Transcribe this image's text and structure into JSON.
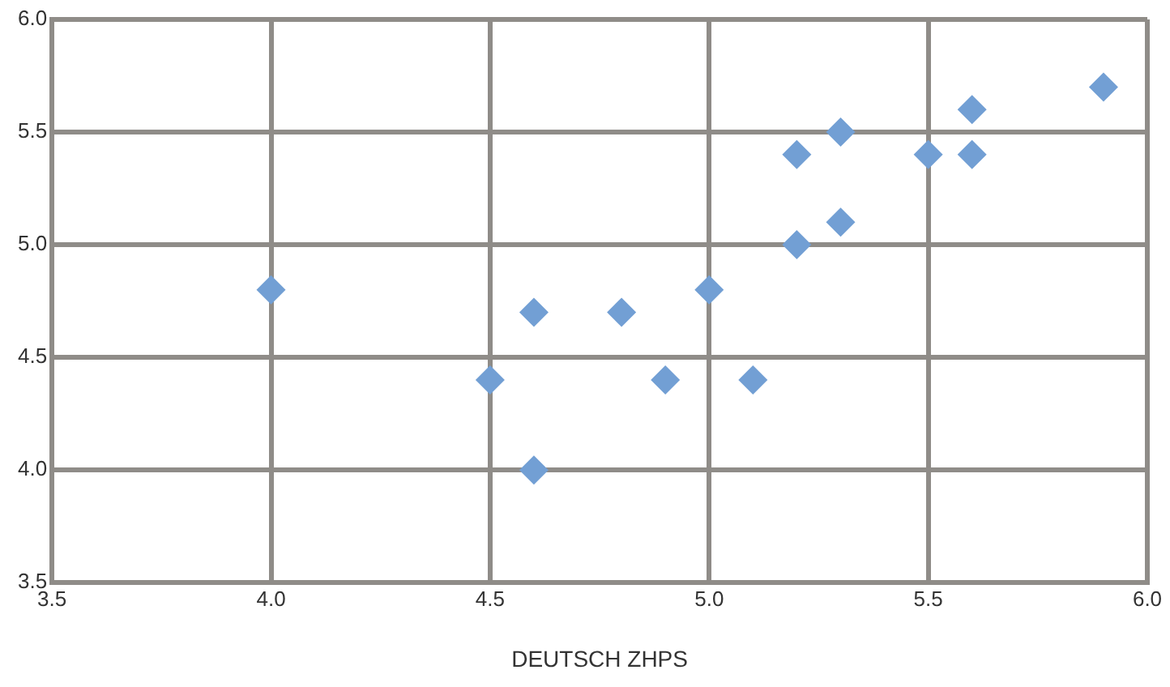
{
  "chart_data": {
    "type": "scatter",
    "xlabel": "DEUTSCH ZHPS",
    "x": [
      4.0,
      4.5,
      4.6,
      4.6,
      4.8,
      4.9,
      5.0,
      5.1,
      5.2,
      5.2,
      5.3,
      5.3,
      5.5,
      5.6,
      5.6,
      5.9
    ],
    "series": [
      {
        "color": "#729fd4",
        "values": [
          4.8,
          4.4,
          4.7,
          4.0,
          4.7,
          4.4,
          4.8,
          4.4,
          5.0,
          5.4,
          5.5,
          5.1,
          5.4,
          5.6,
          5.4,
          5.7
        ]
      }
    ],
    "xlim": [
      3.5,
      6.0
    ],
    "xticks": [
      {
        "value": 3.5,
        "label": "3.5"
      },
      {
        "value": 4.0,
        "label": "4.0"
      },
      {
        "value": 4.5,
        "label": "4.5"
      },
      {
        "value": 5.0,
        "label": "5.0"
      },
      {
        "value": 5.5,
        "label": "5.5"
      },
      {
        "value": 6.0,
        "label": "6.0"
      }
    ],
    "ylim": [
      3.5,
      6.0
    ],
    "yticks": [
      {
        "value": 3.5,
        "label": "3.5"
      },
      {
        "value": 4.0,
        "label": "4.0"
      },
      {
        "value": 4.5,
        "label": "4.5"
      },
      {
        "value": 5.0,
        "label": "5.0"
      },
      {
        "value": 5.5,
        "label": "5.5"
      },
      {
        "value": 6.0,
        "label": "6.0"
      }
    ],
    "grid": true,
    "legend": false,
    "marker": "diamond"
  }
}
